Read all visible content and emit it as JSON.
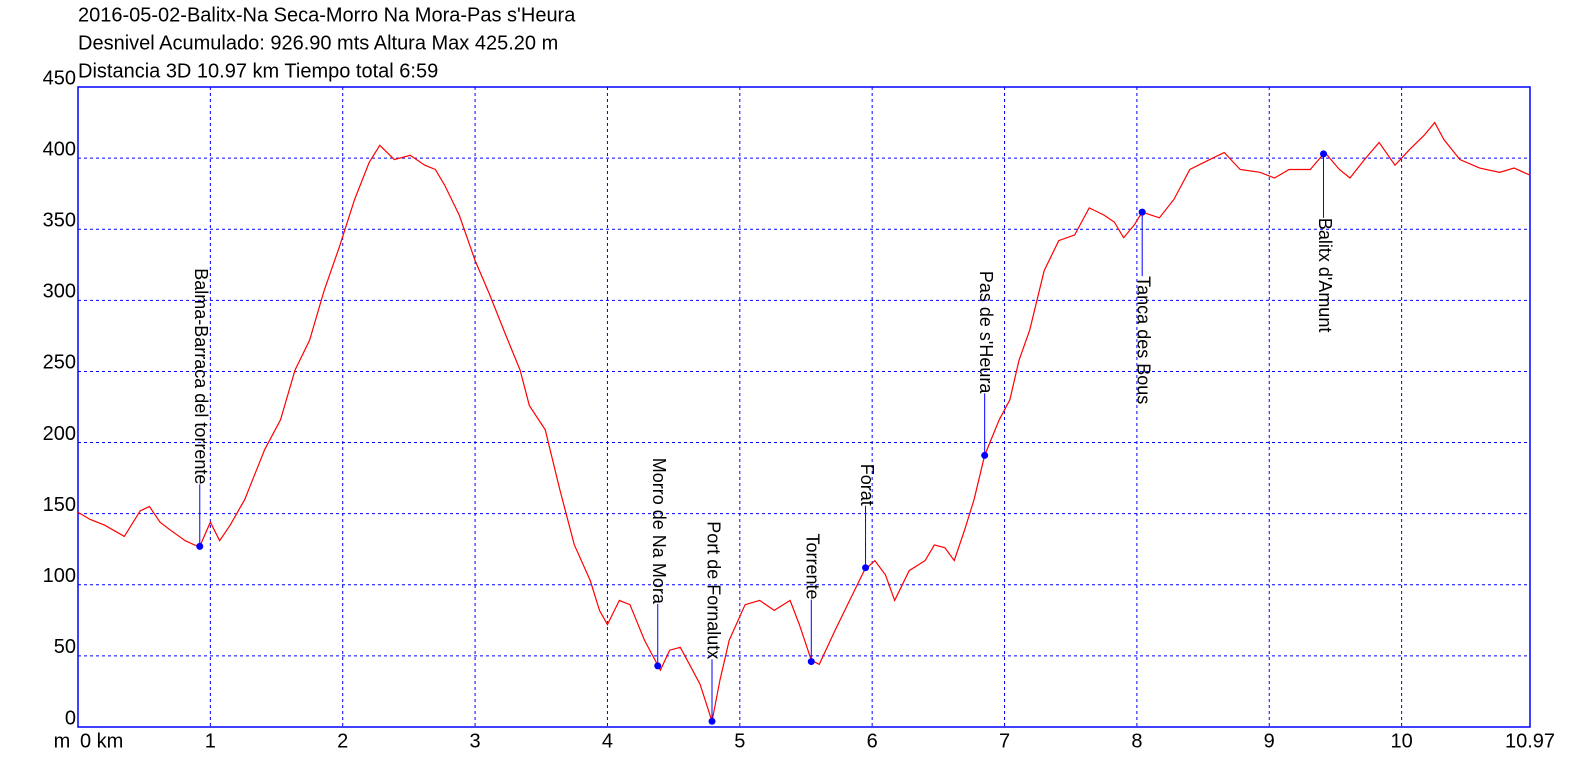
{
  "chart_data": {
    "type": "line",
    "title": "2016-05-02-Balitx-Na Seca-Morro Na Mora-Pas s'Heura",
    "subtitle_lines": [
      "Desnivel Acumulado: 926.90 mts  Altura Max 425.20 m",
      "Distancia 3D 10.97 km  Tiempo total 6:59"
    ],
    "y_unit": "m",
    "x": [
      0,
      0.09,
      0.2,
      0.35,
      0.47,
      0.54,
      0.62,
      0.69,
      0.81,
      0.88,
      0.92,
      1.0,
      1.07,
      1.15,
      1.26,
      1.41,
      1.53,
      1.64,
      1.75,
      1.86,
      1.98,
      2.09,
      2.2,
      2.28,
      2.39,
      2.51,
      2.62,
      2.7,
      2.77,
      2.88,
      3.0,
      3.11,
      3.23,
      3.34,
      3.41,
      3.53,
      3.64,
      3.75,
      3.87,
      3.94,
      4.0,
      4.09,
      4.17,
      4.28,
      4.4,
      4.47,
      4.55,
      4.62,
      4.7,
      4.79,
      4.85,
      4.92,
      5.04,
      5.15,
      5.26,
      5.38,
      5.45,
      5.54,
      5.6,
      5.72,
      5.83,
      5.94,
      6.02,
      6.1,
      6.17,
      6.28,
      6.4,
      6.47,
      6.55,
      6.62,
      6.7,
      6.77,
      6.85,
      6.96,
      7.04,
      7.11,
      7.19,
      7.3,
      7.41,
      7.53,
      7.64,
      7.75,
      7.83,
      7.9,
      7.98,
      8.04,
      8.17,
      8.28,
      8.4,
      8.55,
      8.66,
      8.78,
      8.93,
      9.04,
      9.15,
      9.31,
      9.42,
      9.53,
      9.61,
      9.72,
      9.83,
      9.95,
      10.06,
      10.17,
      10.25,
      10.32,
      10.44,
      10.59,
      10.74,
      10.85,
      10.97
    ],
    "series": [
      {
        "color": "#ff0000",
        "values": [
          151,
          146,
          142,
          134,
          152,
          155,
          144,
          139,
          131,
          128,
          127,
          144,
          131,
          142,
          160,
          195,
          216,
          251,
          272,
          307,
          339,
          371,
          397,
          409,
          399,
          402,
          395,
          392,
          381,
          360,
          328,
          304,
          276,
          251,
          226,
          209,
          167,
          128,
          103,
          82,
          72,
          89,
          86,
          61,
          40,
          54,
          56,
          44,
          30,
          4,
          33,
          61,
          86,
          89,
          82,
          89,
          72,
          47,
          44,
          68,
          89,
          110,
          117,
          107,
          89,
          110,
          117,
          128,
          126,
          117,
          139,
          160,
          191,
          216,
          230,
          258,
          279,
          321,
          342,
          346,
          365,
          360,
          355,
          344,
          353,
          362,
          358,
          371,
          392,
          399,
          404,
          392,
          390,
          386,
          392,
          392,
          404,
          392,
          386,
          399,
          411,
          395,
          406,
          416,
          425,
          413,
          399,
          393,
          390,
          393,
          388
        ]
      }
    ],
    "waypoints": [
      {
        "name": "Balma-Barraca del torrente",
        "km": 0.92,
        "elevation": 127
      },
      {
        "name": "Morro de Na Mora",
        "km": 4.38,
        "elevation": 43
      },
      {
        "name": "Port de Fornalutx",
        "km": 4.79,
        "elevation": 4
      },
      {
        "name": "Torrente",
        "km": 5.54,
        "elevation": 46
      },
      {
        "name": "Forat",
        "km": 5.95,
        "elevation": 112
      },
      {
        "name": "Pas de s'Heura",
        "km": 6.85,
        "elevation": 191
      },
      {
        "name": "Tanca des Bous",
        "km": 8.04,
        "elevation": 362
      },
      {
        "name": "Balitx d'Amunt",
        "km": 9.41,
        "elevation": 403
      }
    ],
    "waypoint_color": "#0000ff",
    "xlim": [
      0,
      10.97
    ],
    "ylim": [
      0,
      450
    ],
    "xticks": [
      {
        "value": 0,
        "label": "0 km"
      },
      1,
      2,
      3,
      4,
      5,
      6,
      7,
      8,
      9,
      10,
      10.97
    ],
    "yticks": [
      0,
      50,
      100,
      150,
      200,
      250,
      300,
      350,
      400,
      450
    ],
    "grid": true,
    "grid_color": "#0000ff",
    "axis_color": "#0000ff"
  }
}
